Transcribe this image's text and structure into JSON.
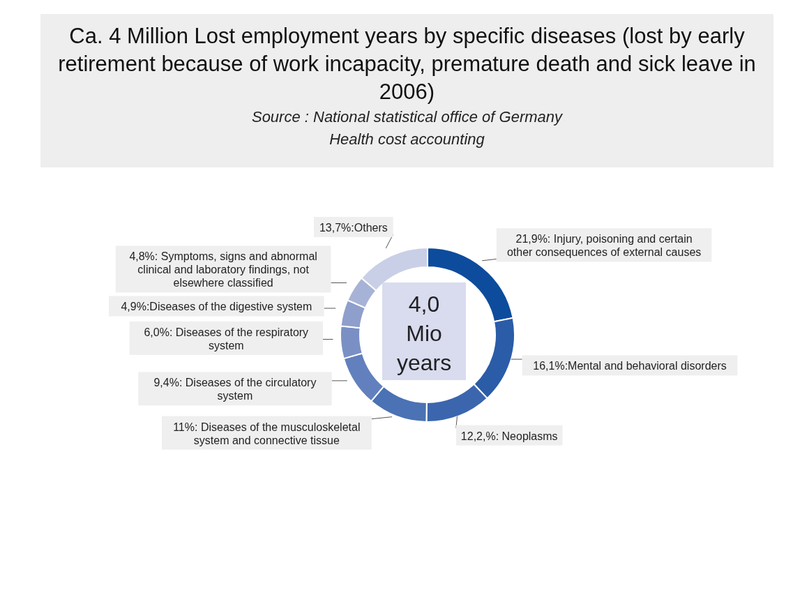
{
  "chart_data": {
    "type": "donut",
    "title": "Ca. 4 Million Lost employment years by specific diseases (lost by early retirement because of work incapacity, premature death and sick leave in 2006)",
    "categories": [
      "21,9%: Injury, poisoning and certain other consequences of external causes",
      "16,1%:Mental and behavioral disorders",
      "12,2,%: Neoplasms",
      "11%: Diseases of the musculoskeletal system and connective tissue",
      "9,4%: Diseases of the circulatory system",
      "6,0%: Diseases of the respiratory system",
      "4,9%:Diseases of the digestive system",
      "4,8%: Symptoms, signs and abnormal clinical and laboratory findings, not elsewhere classified",
      "13,7%:Others"
    ],
    "values": [
      21.9,
      16.1,
      12.2,
      11,
      9.4,
      6.0,
      4.9,
      4.8,
      13.7
    ],
    "colors": [
      "#0d4c9c",
      "#2a5ca8",
      "#3b66ae",
      "#4a72b4",
      "#6280bd",
      "#7a90c5",
      "#8f9fcc",
      "#a7b3d6",
      "#c9cfe6"
    ],
    "annotations": [
      "Source : National statistical office of Germany",
      "Health cost accounting",
      "4,0 Mio years"
    ]
  }
}
